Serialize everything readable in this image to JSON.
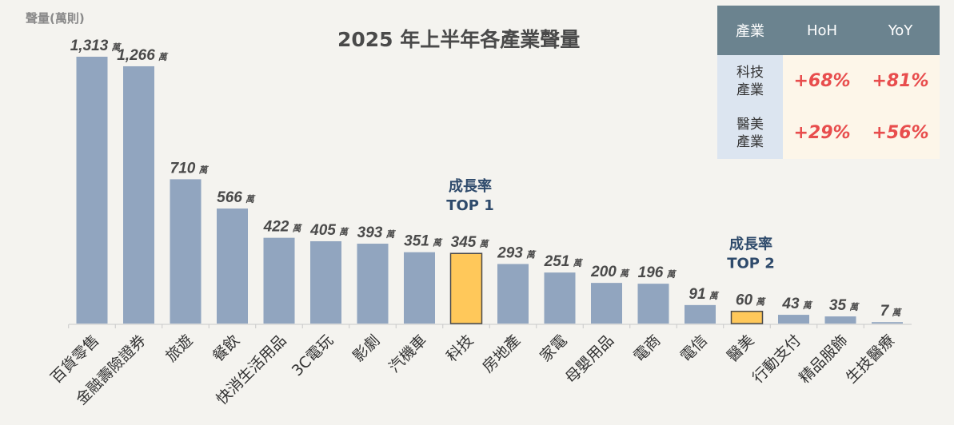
{
  "chart_data": {
    "type": "bar",
    "title": "2025 年上半年各產業聲量",
    "ylabel": "聲量(萬則)",
    "unit_suffix": "萬",
    "categories": [
      "百貨零售",
      "金融壽險證券",
      "旅遊",
      "餐飲",
      "快消生活用品",
      "3C電玩",
      "影劇",
      "汽機車",
      "科技",
      "房地產",
      "家電",
      "母嬰用品",
      "電商",
      "電信",
      "醫美",
      "行動支付",
      "精品服飾",
      "生技醫療"
    ],
    "values": [
      1313,
      1266,
      710,
      566,
      422,
      405,
      393,
      351,
      345,
      293,
      251,
      200,
      196,
      91,
      60,
      43,
      35,
      7
    ],
    "value_labels": [
      "1,313",
      "1,266",
      "710",
      "566",
      "422",
      "405",
      "393",
      "351",
      "345",
      "293",
      "251",
      "200",
      "196",
      "91",
      "60",
      "43",
      "35",
      "7"
    ],
    "highlighted": [
      "科技",
      "醫美"
    ],
    "annotations": [
      {
        "category": "科技",
        "lines": [
          "成長率",
          "TOP 1"
        ]
      },
      {
        "category": "醫美",
        "lines": [
          "成長率",
          "TOP 2"
        ]
      }
    ],
    "ylim": [
      0,
      1313
    ],
    "grid": false,
    "colors": {
      "bar": "#91A5BF",
      "highlight": "#FFC85A",
      "annotation": "#2E4A6B"
    }
  },
  "table": {
    "headers": [
      "產業",
      "HoH",
      "YoY"
    ],
    "rows": [
      {
        "industry": "科技\n產業",
        "hoh": "+68%",
        "yoy": "+81%"
      },
      {
        "industry": "醫美\n產業",
        "hoh": "+29%",
        "yoy": "+56%"
      }
    ]
  }
}
